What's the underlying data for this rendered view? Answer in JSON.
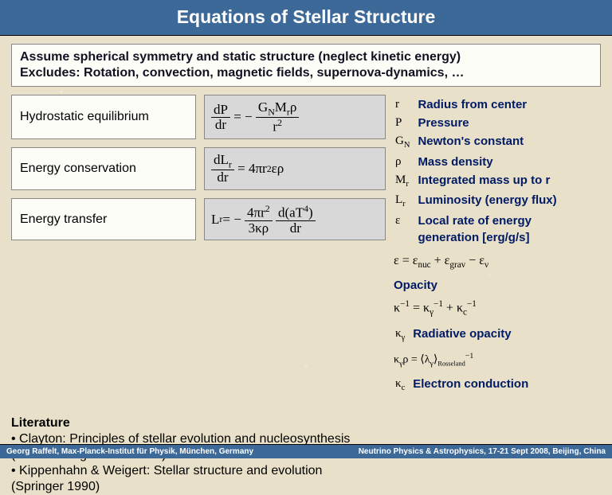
{
  "title": "Equations of Stellar Structure",
  "assumption": {
    "line1": "Assume spherical symmetry and static structure (neglect kinetic energy)",
    "line2": "Excludes: Rotation, convection, magnetic fields, supernova-dynamics, …"
  },
  "rows": [
    {
      "label": "Hydrostatic equilibrium"
    },
    {
      "label": "Energy conservation"
    },
    {
      "label": "Energy transfer"
    }
  ],
  "defs": [
    {
      "sym": "r",
      "desc": "Radius from center"
    },
    {
      "sym": "P",
      "desc": "Pressure"
    },
    {
      "sym": "G_N",
      "desc": "Newton's constant"
    },
    {
      "sym": "rho",
      "desc": "Mass density"
    },
    {
      "sym": "M_r",
      "desc": "Integrated mass up to r"
    },
    {
      "sym": "L_r",
      "desc": "Luminosity (energy flux)"
    },
    {
      "sym": "eps",
      "desc": "Local rate of energy generation [erg/g/s]"
    }
  ],
  "opacity": {
    "main": "Opacity",
    "rad": "Radiative opacity",
    "econd": "Electron conduction"
  },
  "literature": {
    "hdr": "Literature",
    "item1": "Clayton:  Principles of stellar evolution and nucleosynthesis (Univ. Chicago Press 1968)",
    "item2": "Kippenhahn & Weigert: Stellar structure and evolution (Springer 1990)"
  },
  "footer": {
    "left": "Georg Raffelt, Max-Planck-Institut für Physik, München, Germany",
    "right": "Neutrino Physics & Astrophysics, 17-21 Sept 2008, Beijing, China"
  },
  "colors": {
    "title_bg": "#3d6999",
    "page_bg": "#e8e0c8",
    "eq_bg": "#d8d8d8",
    "box_bg": "#fdfdf8",
    "desc_color": "#001a66"
  }
}
